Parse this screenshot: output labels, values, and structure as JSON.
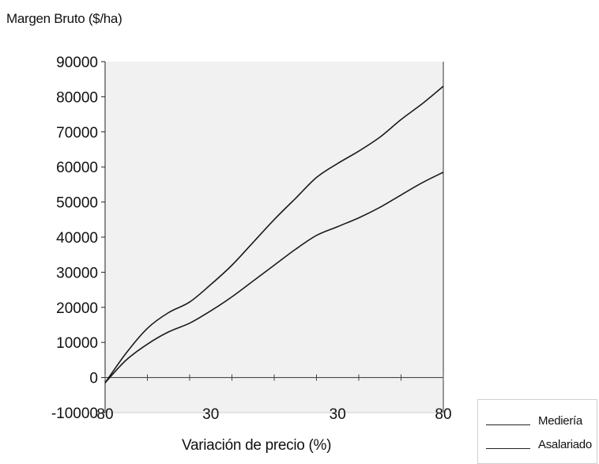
{
  "chart_data": {
    "type": "line",
    "ylabel": "Margen Bruto ($/ha)",
    "xlabel": "Variación de precio (%)",
    "x": [
      -80,
      -70,
      -60,
      -50,
      -40,
      -30,
      -20,
      -10,
      0,
      10,
      20,
      30,
      40,
      50,
      60,
      70,
      80
    ],
    "xtick_labels": [
      "-80",
      "-30",
      "30",
      "80"
    ],
    "xtick_text": [
      "80",
      "30",
      "30",
      "80"
    ],
    "ylim": [
      -10000,
      90000
    ],
    "yticks": [
      90000,
      80000,
      70000,
      60000,
      50000,
      40000,
      30000,
      20000,
      10000,
      0,
      -10000
    ],
    "series": [
      {
        "name": "Mediería",
        "values": [
          -1500,
          7000,
          14000,
          18500,
          21500,
          26500,
          32000,
          38500,
          45000,
          51000,
          57000,
          61000,
          64500,
          68500,
          73500,
          78000,
          83000
        ]
      },
      {
        "name": "Asalariado",
        "values": [
          -1500,
          5000,
          9500,
          13000,
          15500,
          19000,
          23000,
          27500,
          32000,
          36500,
          40500,
          43000,
          45500,
          48500,
          52000,
          55500,
          58500
        ]
      }
    ],
    "grid": false,
    "legend_position": "bottom-right",
    "colors": {
      "line": "#1a1a1a",
      "plot_background": "#f1f1f1",
      "zero_line": "#333333"
    }
  }
}
